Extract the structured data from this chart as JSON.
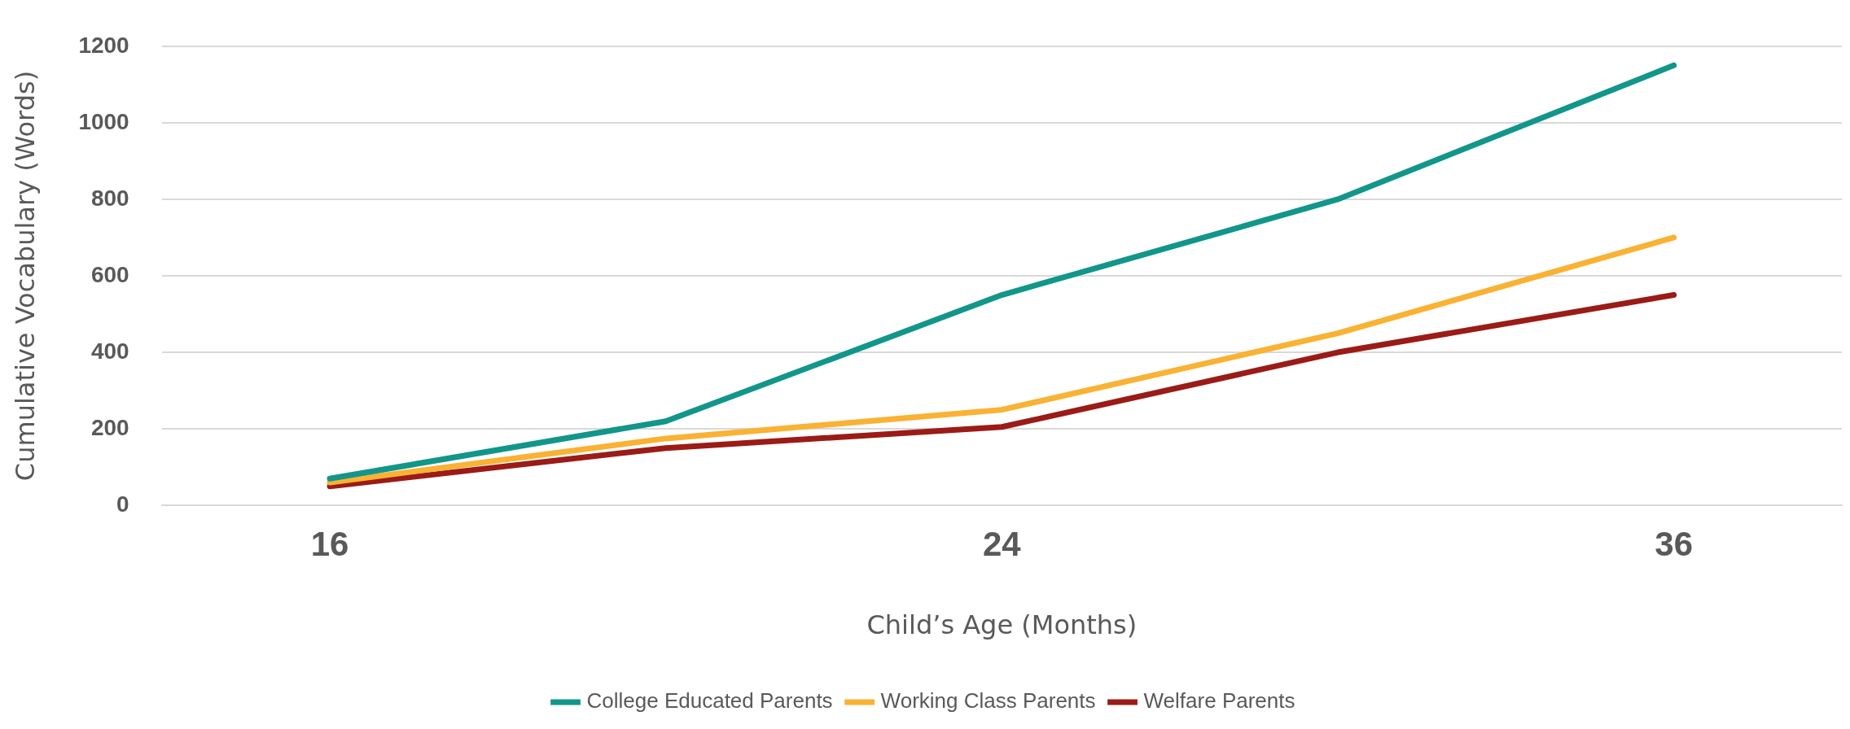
{
  "chart_data": {
    "type": "line",
    "xlabel": "Child’s Age (Months)",
    "ylabel": "Cumulative Vocabulary (Words)",
    "categories": [
      "16",
      null,
      "24",
      null,
      "36"
    ],
    "series": [
      {
        "name": "College Educated Parents",
        "color": "#12968a",
        "values": [
          70,
          220,
          550,
          800,
          1150
        ]
      },
      {
        "name": "Working Class Parents",
        "color": "#f9b233",
        "values": [
          60,
          175,
          250,
          450,
          700
        ]
      },
      {
        "name": "Welfare Parents",
        "color": "#9b1b17",
        "values": [
          50,
          150,
          205,
          400,
          550
        ]
      }
    ],
    "ylim": [
      0,
      1200
    ],
    "yticks": [
      0,
      200,
      400,
      600,
      800,
      1000,
      1200
    ],
    "grid": "y",
    "legend": "bottom",
    "marker": "none",
    "line_style": "solid"
  }
}
